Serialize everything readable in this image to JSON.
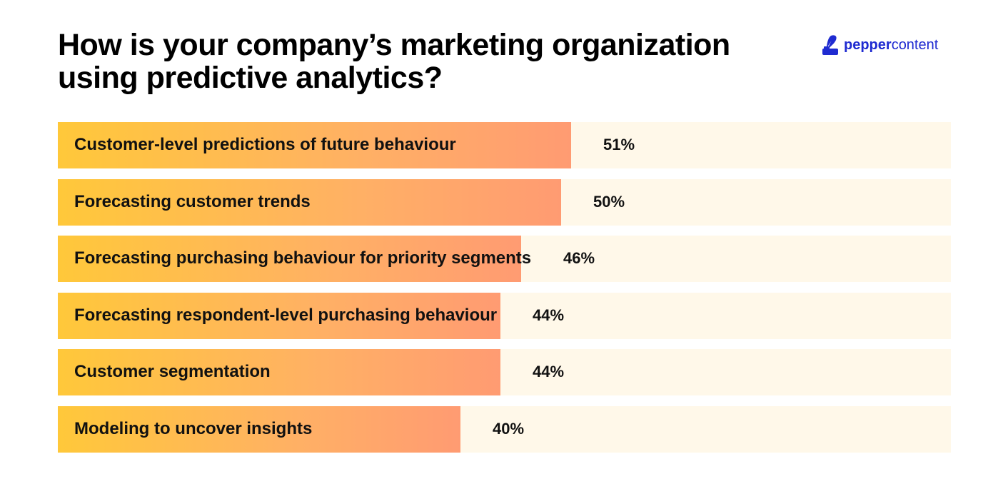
{
  "header": {
    "title_line1": "How is your company’s marketing organization",
    "title_line2": "using predictive analytics?"
  },
  "logo": {
    "icon": "quill-ink-pot-icon",
    "text_bold": "pepper",
    "text_light": "content",
    "color": "#1f2bd1"
  },
  "colors": {
    "bar_gradient_start": "#ffc83a",
    "bar_gradient_end": "#ff9b72",
    "track": "#fff8e9"
  },
  "chart_data": {
    "type": "bar",
    "orientation": "horizontal",
    "title": "How is your company’s marketing organization using predictive analytics?",
    "categories": [
      "Customer-level predictions of future behaviour",
      "Forecasting customer trends",
      "Forecasting purchasing behaviour for priority segments",
      "Forecasting respondent-level purchasing behaviour",
      "Customer segmentation",
      "Modeling to uncover insights"
    ],
    "values": [
      51,
      50,
      46,
      44,
      44,
      40
    ],
    "value_labels": [
      "51%",
      "50%",
      "46%",
      "44%",
      "44%",
      "40%"
    ],
    "unit": "%",
    "xlim": [
      0,
      100
    ],
    "grid": false,
    "legend": "none"
  }
}
